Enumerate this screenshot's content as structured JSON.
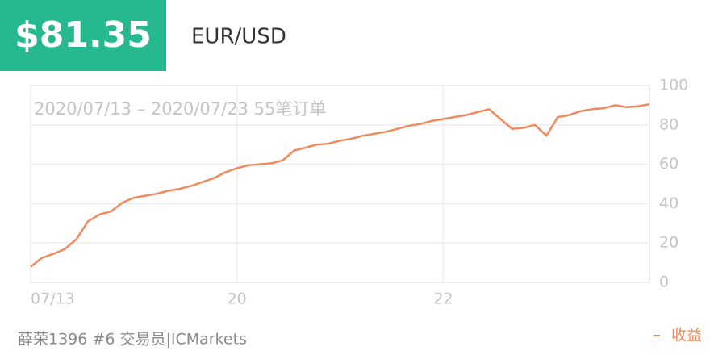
{
  "header": {
    "price": "$81.35",
    "pair": "EUR/USD"
  },
  "chart_data": {
    "type": "line",
    "subtitle": "2020/07/13 – 2020/07/23 55笔订单",
    "categories": [
      "07/13",
      null,
      null,
      null,
      null,
      null,
      null,
      null,
      null,
      null,
      null,
      null,
      null,
      null,
      null,
      null,
      null,
      null,
      "20",
      null,
      null,
      null,
      null,
      null,
      null,
      null,
      null,
      null,
      null,
      null,
      null,
      null,
      null,
      null,
      null,
      null,
      "22",
      null,
      null,
      null,
      null,
      null,
      null,
      null,
      null,
      null,
      null,
      null,
      null,
      null,
      null,
      null,
      null,
      null,
      null
    ],
    "series": [
      {
        "name": "收益",
        "color": "#f08a5d",
        "values": [
          8,
          12.5,
          14.5,
          17,
          22,
          31,
          34.5,
          36,
          40.5,
          43,
          44,
          45,
          46.5,
          47.5,
          49,
          51,
          53,
          56,
          58,
          59.5,
          60,
          60.5,
          62,
          67,
          68.5,
          70,
          70.5,
          72,
          73,
          74.5,
          75.5,
          76.5,
          78,
          79.5,
          80.5,
          82,
          83,
          84,
          85,
          86.5,
          88,
          83,
          78,
          78.5,
          80,
          74.5,
          84,
          85,
          87,
          88,
          88.5,
          90,
          89,
          89.5,
          90.5
        ]
      }
    ],
    "ylim": [
      0,
      100
    ],
    "yticks": [
      0,
      20,
      40,
      60,
      80,
      100
    ],
    "grid": true
  },
  "footer": {
    "trader": "薛荣1396 #6 交易员|ICMarkets"
  }
}
